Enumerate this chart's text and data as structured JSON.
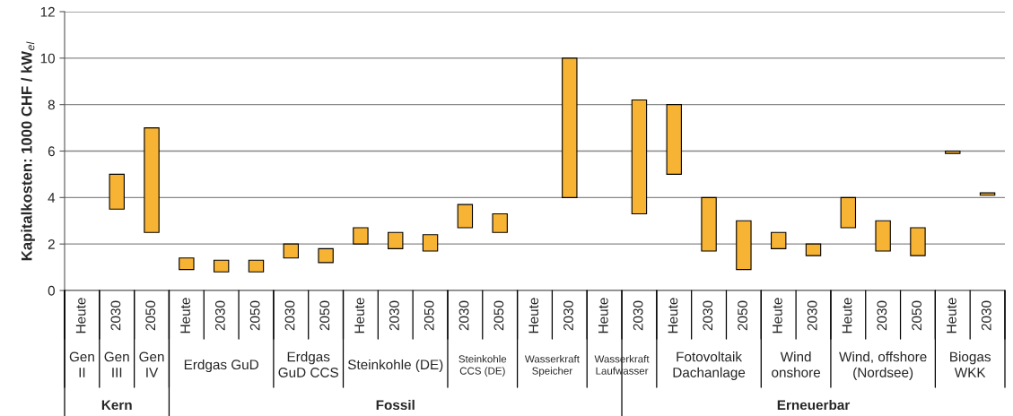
{
  "chart_data": {
    "type": "bar",
    "ylabel": "Kapitalkosten: 1000 CHF / kW$_{el}$",
    "categories": [
      "Heute",
      "2030",
      "2050",
      "Heute",
      "2030",
      "2050",
      "2030",
      "2050",
      "Heute",
      "2030",
      "2050",
      "2030",
      "2050",
      "Heute",
      "2030",
      "Heute",
      "2030",
      "Heute",
      "2030",
      "2050",
      "Heute",
      "2030",
      "Heute",
      "2030",
      "2050",
      "Heute",
      "2030"
    ],
    "base": [
      null,
      3.5,
      2.5,
      0.9,
      0.8,
      0.8,
      1.4,
      1.2,
      2.0,
      1.8,
      1.7,
      2.7,
      2.5,
      null,
      4.0,
      null,
      3.3,
      5.0,
      1.7,
      0.9,
      1.8,
      1.5,
      2.7,
      1.7,
      1.5,
      5.9,
      4.1
    ],
    "values": [
      null,
      1.5,
      4.5,
      0.5,
      0.5,
      0.5,
      0.6,
      0.6,
      0.7,
      0.7,
      0.7,
      1.0,
      0.8,
      null,
      6.0,
      null,
      4.9,
      3.0,
      2.3,
      2.1,
      0.7,
      0.5,
      1.3,
      1.3,
      1.2,
      0.1,
      0.1
    ],
    "color": "#f7b334",
    "ylim": [
      0,
      12
    ],
    "yticks": [
      0,
      2,
      4,
      6,
      8,
      10,
      12
    ],
    "grid": "y",
    "annotations": [
      "Gen\nII",
      "Gen\nIII",
      "Gen\nIV",
      "Erdgas GuD",
      "Erdgas\nGuD CCS",
      "Steinkohle (DE)",
      "Steinkohle\nCCS (DE)",
      "Wasserkraft\nSpeicher",
      "Wasserkraft\nLaufwasser",
      "Fotovoltaik\nDachanlage",
      "Wind\nonshore",
      "Wind, offshore\n(Nordsee)",
      "Biogas\nWKK",
      "Kern",
      "Fossil",
      "Erneuerbar"
    ]
  }
}
